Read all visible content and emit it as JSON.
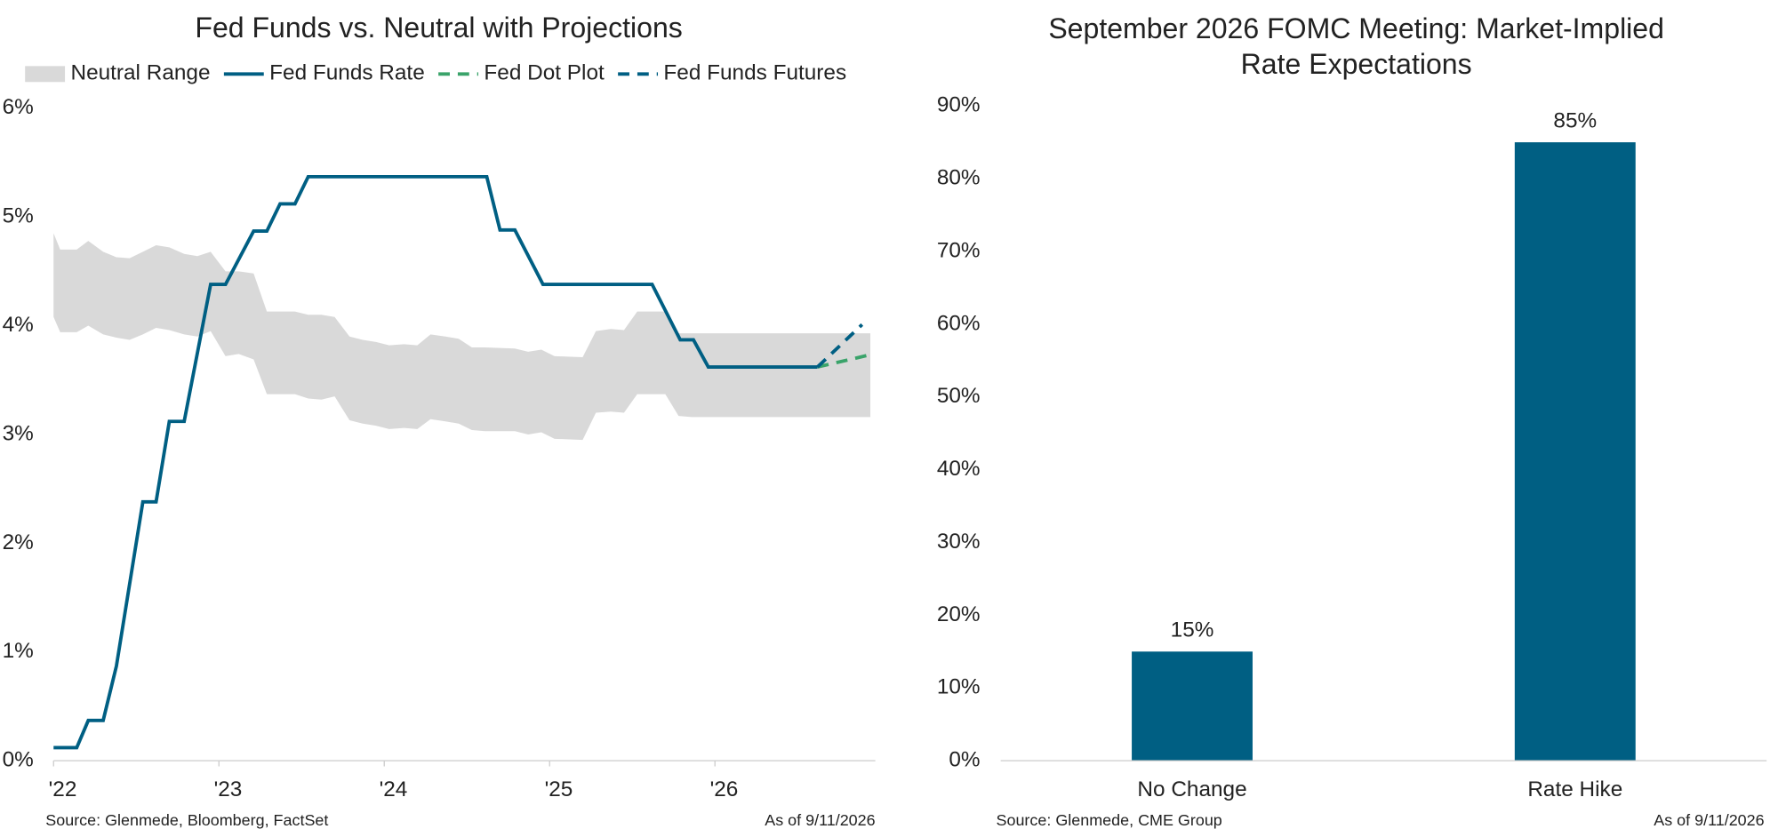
{
  "chart_data": [
    {
      "type": "line",
      "title": "Fed Funds vs. Neutral with Projections",
      "legend": "top",
      "xlim": [
        2022,
        2026.97
      ],
      "ylim": [
        0,
        6
      ],
      "xticks": [
        {
          "value": 2022,
          "label": "'22"
        },
        {
          "value": 2023,
          "label": "'23"
        },
        {
          "value": 2024,
          "label": "'24"
        },
        {
          "value": 2025,
          "label": "'25"
        },
        {
          "value": 2026,
          "label": "'26"
        }
      ],
      "yticks": [
        {
          "value": 0,
          "label": "0%"
        },
        {
          "value": 1,
          "label": "1%"
        },
        {
          "value": 2,
          "label": "2%"
        },
        {
          "value": 3,
          "label": "3%"
        },
        {
          "value": 4,
          "label": "4%"
        },
        {
          "value": 5,
          "label": "5%"
        },
        {
          "value": 6,
          "label": "6%"
        }
      ],
      "series": [
        {
          "name": "Neutral Range",
          "type": "range",
          "color": "#d9d9d9",
          "x": [
            2022,
            2022.04,
            2022.14,
            2022.21,
            2022.3,
            2022.38,
            2022.46,
            2022.54,
            2022.62,
            2022.7,
            2022.79,
            2022.87,
            2022.95,
            2023.04,
            2023.12,
            2023.21,
            2023.29,
            2023.46,
            2023.54,
            2023.62,
            2023.7,
            2023.79,
            2023.87,
            2023.95,
            2024.03,
            2024.12,
            2024.2,
            2024.28,
            2024.37,
            2024.45,
            2024.53,
            2024.61,
            2024.79,
            2024.87,
            2024.95,
            2025.03,
            2025.2,
            2025.28,
            2025.37,
            2025.45,
            2025.53,
            2025.7,
            2025.78,
            2025.86,
            2026.94
          ],
          "low": [
            4.08,
            3.94,
            3.94,
            4.0,
            3.92,
            3.89,
            3.87,
            3.92,
            3.98,
            3.96,
            3.92,
            3.9,
            3.95,
            3.72,
            3.74,
            3.69,
            3.37,
            3.37,
            3.33,
            3.32,
            3.35,
            3.13,
            3.1,
            3.08,
            3.05,
            3.06,
            3.05,
            3.14,
            3.12,
            3.1,
            3.04,
            3.03,
            3.03,
            3.0,
            3.02,
            2.96,
            2.95,
            3.2,
            3.21,
            3.2,
            3.37,
            3.37,
            3.17,
            3.16,
            3.16
          ],
          "high": [
            4.85,
            4.7,
            4.7,
            4.78,
            4.68,
            4.63,
            4.62,
            4.68,
            4.74,
            4.72,
            4.66,
            4.64,
            4.68,
            4.5,
            4.5,
            4.48,
            4.13,
            4.13,
            4.1,
            4.1,
            4.08,
            3.9,
            3.87,
            3.85,
            3.82,
            3.83,
            3.82,
            3.92,
            3.9,
            3.88,
            3.8,
            3.8,
            3.79,
            3.76,
            3.78,
            3.72,
            3.71,
            3.95,
            3.97,
            3.96,
            4.13,
            4.13,
            3.93,
            3.93,
            3.93
          ]
        },
        {
          "name": "Fed Funds Rate",
          "type": "solid",
          "color": "#005f83",
          "x": [
            2022,
            2022.14,
            2022.21,
            2022.3,
            2022.38,
            2022.54,
            2022.62,
            2022.7,
            2022.79,
            2022.95,
            2023.04,
            2023.21,
            2023.29,
            2023.37,
            2023.46,
            2023.54,
            2024.62,
            2024.7,
            2024.79,
            2024.96,
            2025.62,
            2025.79,
            2025.87,
            2025.96,
            2026.62
          ],
          "values": [
            0.12,
            0.12,
            0.37,
            0.37,
            0.87,
            2.38,
            2.38,
            3.12,
            3.12,
            4.38,
            4.38,
            4.87,
            4.87,
            5.12,
            5.12,
            5.37,
            5.37,
            4.88,
            4.88,
            4.38,
            4.38,
            3.87,
            3.87,
            3.62,
            3.62
          ]
        },
        {
          "name": "Fed Dot Plot",
          "type": "dashed",
          "color": "#3aa36a",
          "x": [
            2026.62,
            2026.96
          ],
          "values": [
            3.62,
            3.74
          ]
        },
        {
          "name": "Fed Funds Futures",
          "type": "dashed",
          "color": "#005f83",
          "x": [
            2026.62,
            2026.89
          ],
          "values": [
            3.62,
            4.01
          ]
        }
      ],
      "source": "Source: Glenmede, Bloomberg, FactSet",
      "as_of": "As of 9/11/2026"
    },
    {
      "type": "bar",
      "title": [
        "September 2026 FOMC Meeting: Market-Implied",
        "Rate Expectations"
      ],
      "categories": [
        "No Change",
        "Rate Hike"
      ],
      "values": [
        15,
        85
      ],
      "value_labels": [
        "15%",
        "85%"
      ],
      "color": "#005f83",
      "ylim": [
        0,
        90
      ],
      "yticks": [
        {
          "value": 0,
          "label": "0%"
        },
        {
          "value": 10,
          "label": "10%"
        },
        {
          "value": 20,
          "label": "20%"
        },
        {
          "value": 30,
          "label": "30%"
        },
        {
          "value": 40,
          "label": "40%"
        },
        {
          "value": 50,
          "label": "50%"
        },
        {
          "value": 60,
          "label": "60%"
        },
        {
          "value": 70,
          "label": "70%"
        },
        {
          "value": 80,
          "label": "80%"
        },
        {
          "value": 90,
          "label": "90%"
        }
      ],
      "source": "Source: Glenmede, CME Group",
      "as_of": "As of 9/11/2026"
    }
  ]
}
